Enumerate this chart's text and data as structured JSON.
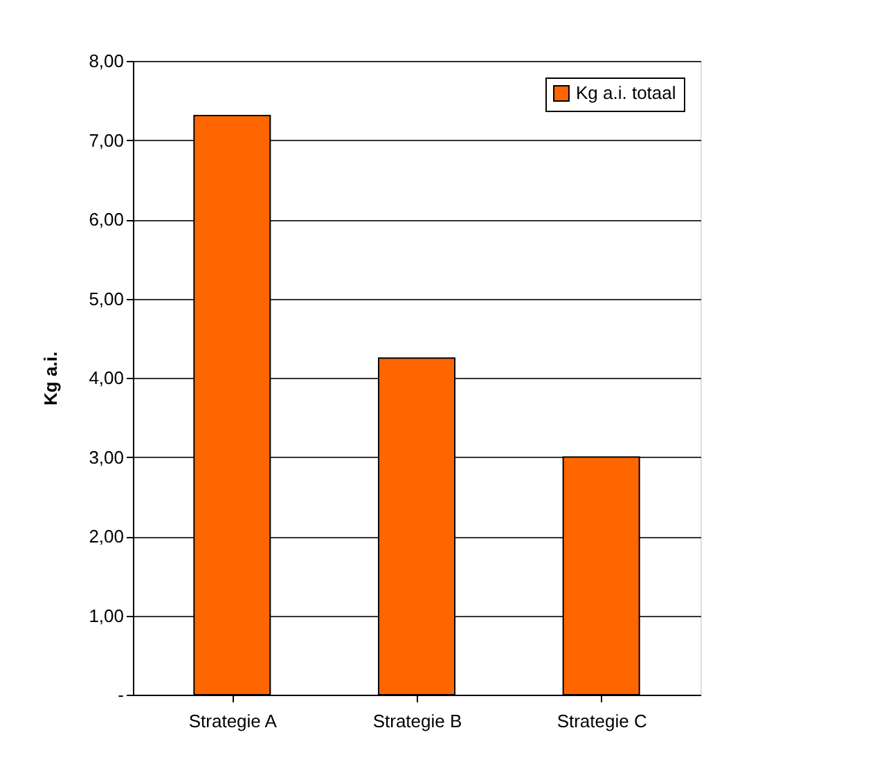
{
  "chart_data": {
    "type": "bar",
    "ylabel": "Kg a.i.",
    "categories": [
      "Strategie A",
      "Strategie B",
      "Strategie C"
    ],
    "series": [
      {
        "name": "Kg a.i. totaal",
        "color": "#ff6600",
        "values": [
          7.31,
          4.25,
          3.0
        ]
      }
    ],
    "ylim": [
      0,
      8
    ],
    "yticks": [
      {
        "value": 0,
        "label": "-"
      },
      {
        "value": 1,
        "label": "1,00"
      },
      {
        "value": 2,
        "label": "2,00"
      },
      {
        "value": 3,
        "label": "3,00"
      },
      {
        "value": 4,
        "label": "4,00"
      },
      {
        "value": 5,
        "label": "5,00"
      },
      {
        "value": 6,
        "label": "6,00"
      },
      {
        "value": 7,
        "label": "7,00"
      },
      {
        "value": 8,
        "label": "8,00"
      }
    ],
    "grid": "y",
    "legend": "top right"
  }
}
